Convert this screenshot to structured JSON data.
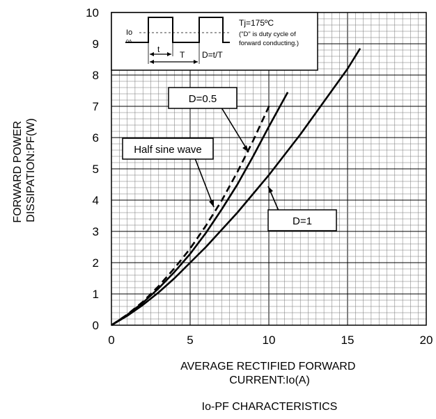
{
  "chart_data": {
    "type": "line",
    "title": "Io-PF CHARACTERISTICS",
    "xlabel": "AVERAGE RECTIFIED FORWARD CURRENT:Io(A)",
    "ylabel": "FORWARD POWER DISSIPATION:PF(W)",
    "xlim": [
      0,
      20
    ],
    "ylim": [
      0,
      10
    ],
    "x_ticks": [
      "0",
      "5",
      "10",
      "15",
      "20"
    ],
    "y_ticks": [
      "0",
      "1",
      "2",
      "3",
      "4",
      "5",
      "6",
      "7",
      "8",
      "9",
      "10"
    ],
    "grid": true,
    "series": [
      {
        "name": "D=1",
        "style": "solid",
        "x": [
          0,
          1,
          2,
          3,
          4,
          5,
          6,
          7,
          8,
          9,
          10,
          11,
          12,
          13,
          14,
          15,
          15.8
        ],
        "y": [
          0,
          0.3,
          0.65,
          1.05,
          1.5,
          2.0,
          2.5,
          3.05,
          3.6,
          4.2,
          4.8,
          5.45,
          6.1,
          6.8,
          7.5,
          8.2,
          8.85
        ]
      },
      {
        "name": "D=0.5",
        "style": "solid",
        "x": [
          0,
          1,
          2,
          3,
          4,
          5,
          6,
          7,
          8,
          9,
          10,
          11.2
        ],
        "y": [
          0,
          0.33,
          0.72,
          1.18,
          1.7,
          2.28,
          2.95,
          3.7,
          4.5,
          5.4,
          6.35,
          7.45
        ]
      },
      {
        "name": "Half sine wave",
        "style": "dashed",
        "x": [
          0,
          1,
          2,
          3,
          4,
          5,
          6,
          7,
          8,
          9,
          10.1
        ],
        "y": [
          0,
          0.34,
          0.75,
          1.25,
          1.82,
          2.45,
          3.18,
          3.98,
          4.9,
          5.9,
          7.1
        ]
      }
    ],
    "annotations": [
      {
        "label": "D=0.5",
        "x": 8.8,
        "y": 5.4
      },
      {
        "label": "Half sine wave",
        "x": 6.6,
        "y": 3.8
      },
      {
        "label": "D=1",
        "x": 10.2,
        "y": 4.5
      }
    ]
  },
  "inset": {
    "tj_label": "Tj=175ºC",
    "note": "(\"D\" is duty cycle of forward conducting.)",
    "io_label": "Io",
    "zero_label": "0A",
    "t_label": "t",
    "T_label": "T",
    "formula": "D=t/T"
  }
}
